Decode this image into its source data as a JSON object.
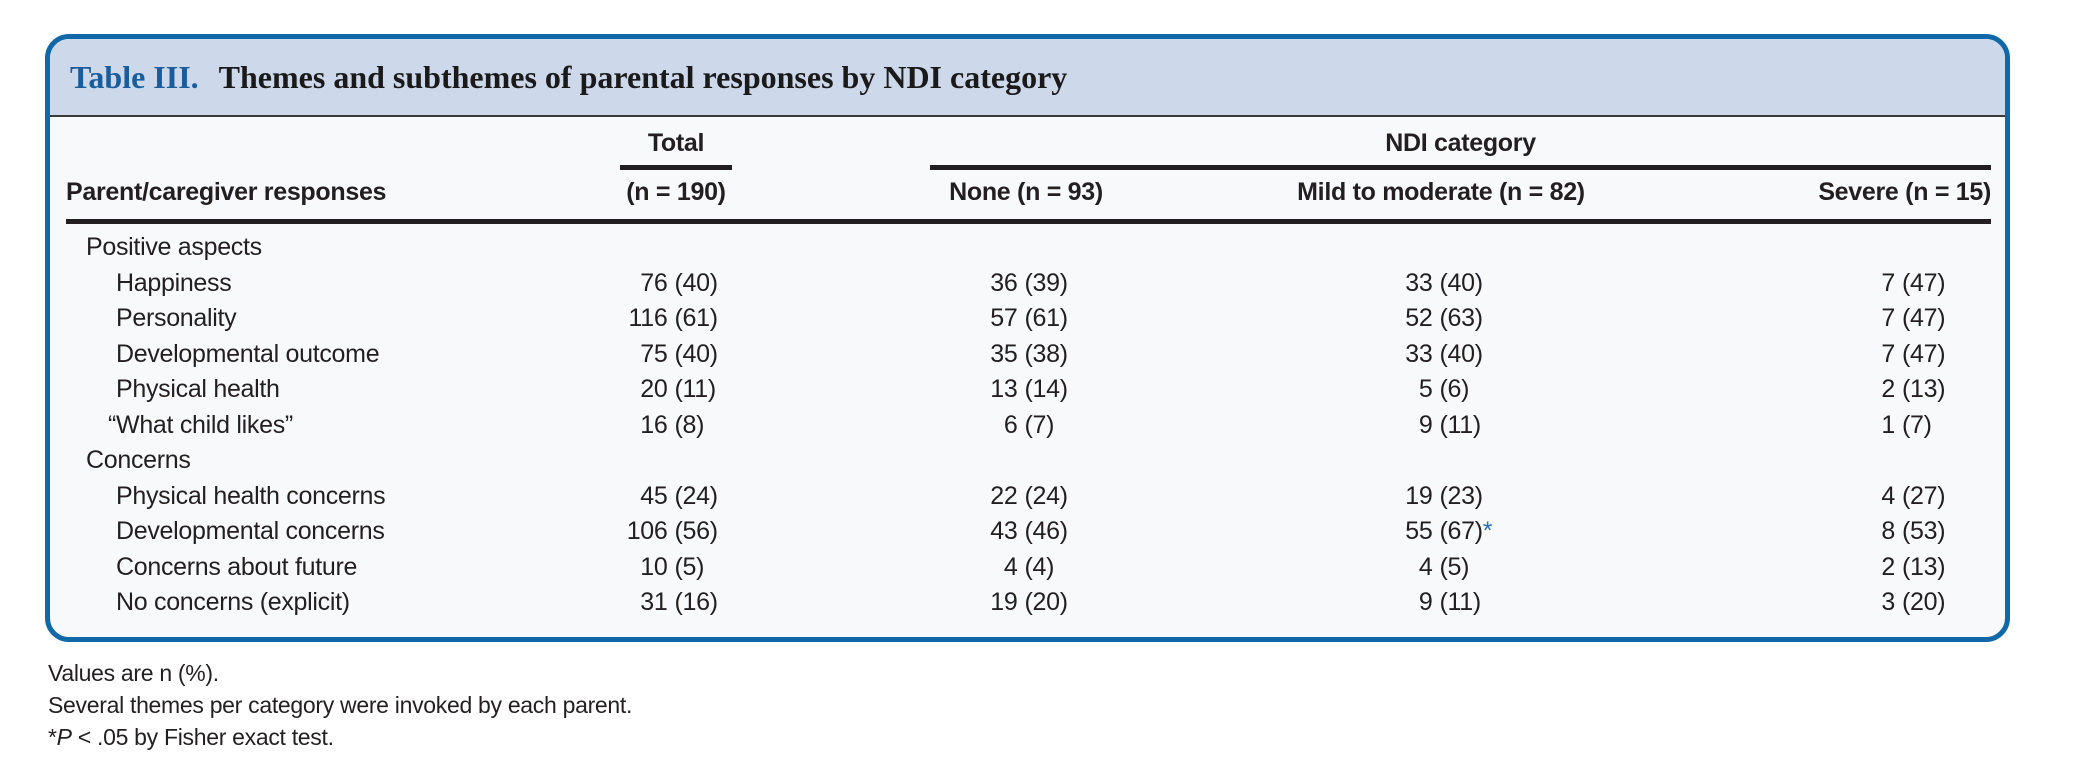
{
  "colors": {
    "border_blue": "#1168a9",
    "band_bg": "#cdd8eb",
    "title_blue": "#1a5d9d",
    "body_bg": "#f7f9fa",
    "text": "#231f20",
    "asterisk_blue": "#2a6db4"
  },
  "table": {
    "label": "Table III.",
    "title": "Themes and subthemes of parental responses by NDI category",
    "col_groups": {
      "total": "Total",
      "ndi": "NDI category"
    },
    "columns": {
      "stub": "Parent/caregiver responses",
      "total": "(n = 190)",
      "none": "None (n = 93)",
      "mild": "Mild to moderate (n = 82)",
      "severe": "Severe (n = 15)"
    },
    "rows": [
      {
        "type": "section",
        "label": "Positive aspects"
      },
      {
        "type": "sub",
        "label": "Happiness",
        "total_n": "76",
        "total_p": "(40)",
        "none_n": "36",
        "none_p": "(39)",
        "mild_n": "33",
        "mild_p": "(40)",
        "severe_n": "7",
        "severe_p": "(47)"
      },
      {
        "type": "sub",
        "label": "Personality",
        "total_n": "116",
        "total_p": "(61)",
        "none_n": "57",
        "none_p": "(61)",
        "mild_n": "52",
        "mild_p": "(63)",
        "severe_n": "7",
        "severe_p": "(47)"
      },
      {
        "type": "sub",
        "label": "Developmental outcome",
        "total_n": "75",
        "total_p": "(40)",
        "none_n": "35",
        "none_p": "(38)",
        "mild_n": "33",
        "mild_p": "(40)",
        "severe_n": "7",
        "severe_p": "(47)"
      },
      {
        "type": "sub",
        "label": "Physical health",
        "total_n": "20",
        "total_p": "(11)",
        "none_n": "13",
        "none_p": "(14)",
        "mild_n": "5",
        "mild_p": "(6)",
        "severe_n": "2",
        "severe_p": "(13)"
      },
      {
        "type": "subq",
        "label": "“What child likes”",
        "total_n": "16",
        "total_p": "(8)",
        "none_n": "6",
        "none_p": "(7)",
        "mild_n": "9",
        "mild_p": "(11)",
        "severe_n": "1",
        "severe_p": "(7)"
      },
      {
        "type": "section",
        "label": "Concerns"
      },
      {
        "type": "sub",
        "label": "Physical health concerns",
        "total_n": "45",
        "total_p": "(24)",
        "none_n": "22",
        "none_p": "(24)",
        "mild_n": "19",
        "mild_p": "(23)",
        "severe_n": "4",
        "severe_p": "(27)"
      },
      {
        "type": "sub",
        "label": "Developmental concerns",
        "total_n": "106",
        "total_p": "(56)",
        "none_n": "43",
        "none_p": "(46)",
        "mild_n": "55",
        "mild_p": "(67)",
        "mild_star": "*",
        "severe_n": "8",
        "severe_p": "(53)"
      },
      {
        "type": "sub",
        "label": "Concerns about future",
        "total_n": "10",
        "total_p": "(5)",
        "none_n": "4",
        "none_p": "(4)",
        "mild_n": "4",
        "mild_p": "(5)",
        "severe_n": "2",
        "severe_p": "(13)"
      },
      {
        "type": "sub",
        "label": "No concerns (explicit)",
        "total_n": "31",
        "total_p": "(16)",
        "none_n": "19",
        "none_p": "(20)",
        "mild_n": "9",
        "mild_p": "(11)",
        "severe_n": "3",
        "severe_p": "(20)"
      }
    ],
    "footnotes": {
      "line1": "Values are n (%).",
      "line2": "Several themes per category were invoked by each parent.",
      "line3_star": "*",
      "line3_p": "P",
      "line3_rest": " < .05 by Fisher exact test."
    }
  }
}
